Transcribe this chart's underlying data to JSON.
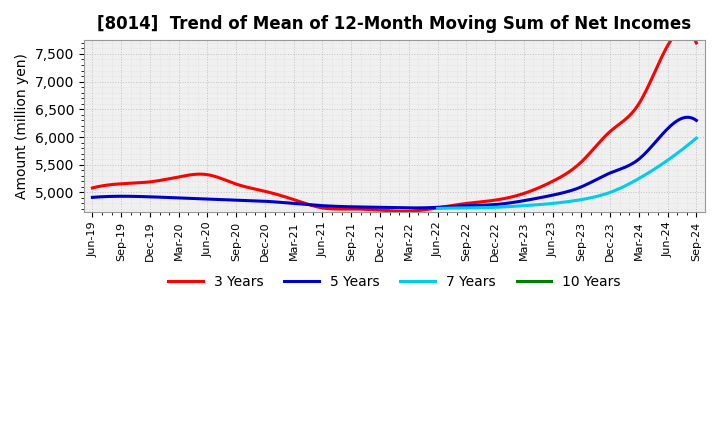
{
  "title": "[8014]  Trend of Mean of 12-Month Moving Sum of Net Incomes",
  "ylabel": "Amount (million yen)",
  "background_color": "#ffffff",
  "plot_bg_color": "#f0f0f0",
  "grid_color": "#bbbbbb",
  "title_fontsize": 12,
  "ylabel_fontsize": 10,
  "ylim": [
    4650,
    7750
  ],
  "yticks": [
    5000,
    5500,
    6000,
    6500,
    7000,
    7500
  ],
  "series": {
    "3 Years": {
      "color": "#ff0000",
      "values": [
        5080,
        5155,
        5190,
        5280,
        5320,
        5150,
        5020,
        4870,
        4720,
        4700,
        4680,
        4660,
        4720,
        4800,
        4860,
        4980,
        5200,
        5550,
        6100,
        6600,
        7650,
        7700
      ]
    },
    "5 Years": {
      "color": "#0000cc",
      "values": [
        4910,
        4930,
        4920,
        4900,
        4880,
        4860,
        4840,
        4800,
        4760,
        4740,
        4730,
        4720,
        4730,
        4760,
        4780,
        4850,
        4950,
        5100,
        5350,
        5600,
        6150,
        6300
      ]
    },
    "7 Years": {
      "color": "#00ccee",
      "values": [
        null,
        null,
        null,
        null,
        null,
        null,
        null,
        null,
        null,
        null,
        null,
        null,
        4710,
        4720,
        4730,
        4760,
        4800,
        4870,
        5000,
        5250,
        5580,
        5980
      ]
    },
    "10 Years": {
      "color": "#008000",
      "values": [
        null,
        null,
        null,
        null,
        null,
        null,
        null,
        null,
        null,
        null,
        null,
        null,
        null,
        null,
        null,
        null,
        null,
        null,
        null,
        null,
        null,
        null
      ]
    }
  },
  "xtick_labels": [
    "Jun-19",
    "Sep-19",
    "Dec-19",
    "Mar-20",
    "Jun-20",
    "Sep-20",
    "Dec-20",
    "Mar-21",
    "Jun-21",
    "Sep-21",
    "Dec-21",
    "Mar-22",
    "Jun-22",
    "Sep-22",
    "Dec-22",
    "Mar-23",
    "Jun-23",
    "Sep-23",
    "Dec-23",
    "Mar-24",
    "Jun-24",
    "Sep-24"
  ],
  "legend_labels": [
    "3 Years",
    "5 Years",
    "7 Years",
    "10 Years"
  ],
  "legend_colors": [
    "#ff0000",
    "#0000cc",
    "#00ccee",
    "#008000"
  ]
}
